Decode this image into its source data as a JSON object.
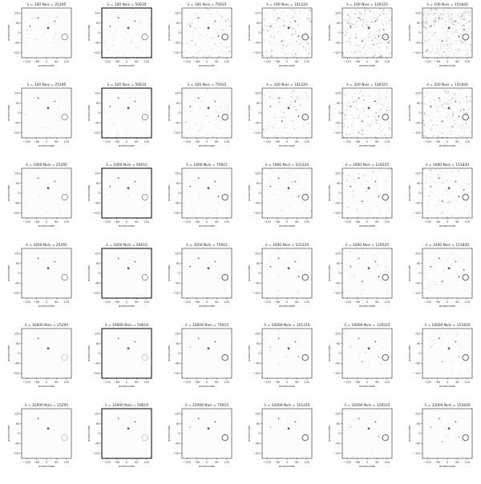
{
  "figure": {
    "rows": [
      {
        "lambda": "100"
      },
      {
        "lambda": "320"
      },
      {
        "lambda": "1000"
      },
      {
        "lambda": "3200"
      },
      {
        "lambda": "10000"
      },
      {
        "lambda": "32000"
      }
    ],
    "columns": [
      {
        "nvis": "25295"
      },
      {
        "nvis": "50610"
      },
      {
        "nvis": "75915"
      },
      {
        "nvis": "101220"
      },
      {
        "nvis": "126525"
      },
      {
        "nvis": "151830"
      }
    ],
    "title_format": "λ = {lambda} Nvis = {nvis}",
    "xlabel": "arcseconds",
    "ylabel": "arcseconds",
    "xticks": [
      "−120",
      "−60",
      "0",
      "60",
      "120"
    ],
    "yticks": [
      "120",
      "60",
      "0",
      "−60",
      "−120"
    ]
  },
  "chart_data": {
    "type": "heatmap",
    "description_grid": "6 rows (regularization λ) × 6 columns (number of visibilities)",
    "xlabel": "arcseconds",
    "ylabel": "arcseconds",
    "xlim": [
      -150,
      150
    ],
    "ylim": [
      -150,
      150
    ],
    "colormap": "grayscale (white background, dark sources)",
    "sources": [
      {
        "x": -50,
        "y": 90
      },
      {
        "x": 10,
        "y": 30
      },
      {
        "x": 50,
        "y": 70
      },
      {
        "x": -100,
        "y": 40
      },
      {
        "x": 70,
        "y": -20
      },
      {
        "x": -30,
        "y": -50
      },
      {
        "x": 100,
        "y": 20
      }
    ],
    "ring": {
      "x": 110,
      "y": -25,
      "radius": 18
    },
    "noise_level_by_column": [
      0.15,
      0.2,
      0.35,
      0.6,
      0.9,
      1.0
    ],
    "noise_scale_by_row": [
      1.0,
      0.6,
      0.3,
      0.18,
      0.1,
      0.06
    ]
  }
}
